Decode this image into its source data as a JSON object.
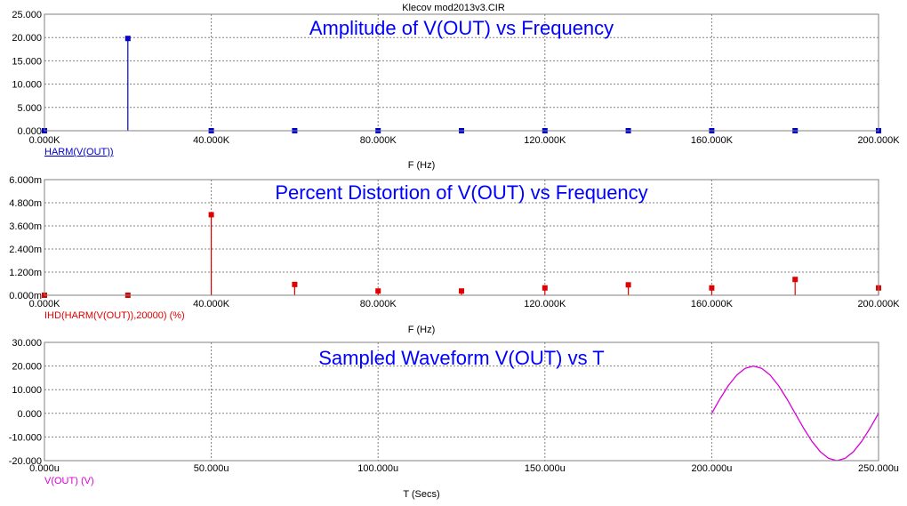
{
  "window": {
    "file_title": "Klecov mod2013v3.CIR"
  },
  "chart_data": [
    {
      "type": "bar",
      "title": "Amplitude of V(OUT) vs Frequency",
      "legend": "HARM(V(OUT))",
      "xlabel": "F (Hz)",
      "ylabel": "",
      "color": "#0000C8",
      "title_color": "#0000FF",
      "xlim": [
        0,
        200000
      ],
      "ylim": [
        0,
        25
      ],
      "xticks": [
        0,
        40000,
        80000,
        120000,
        160000,
        200000
      ],
      "xtick_labels": [
        "0.000K",
        "40.000K",
        "80.000K",
        "120.000K",
        "160.000K",
        "200.000K"
      ],
      "yticks": [
        0,
        5,
        10,
        15,
        20,
        25
      ],
      "ytick_labels": [
        "0.000",
        "5.000",
        "10.000",
        "15.000",
        "20.000",
        "25.000"
      ],
      "grid": true,
      "x": [
        0,
        20000,
        40000,
        60000,
        80000,
        100000,
        120000,
        140000,
        160000,
        180000,
        200000
      ],
      "values": [
        0,
        19.8,
        0,
        0,
        0,
        0,
        0,
        0,
        0,
        0,
        0
      ]
    },
    {
      "type": "bar",
      "title": "Percent Distortion of V(OUT) vs Frequency",
      "legend": "IHD(HARM(V(OUT)),20000) (%)",
      "xlabel": "F (Hz)",
      "ylabel": "",
      "color": "#E00000",
      "title_color": "#0000FF",
      "xlim": [
        0,
        200000
      ],
      "ylim": [
        0,
        6
      ],
      "xticks": [
        0,
        40000,
        80000,
        120000,
        160000,
        200000
      ],
      "xtick_labels": [
        "0.000K",
        "40.000K",
        "80.000K",
        "120.000K",
        "160.000K",
        "200.000K"
      ],
      "yticks": [
        0,
        1.2,
        2.4,
        3.6,
        4.8,
        6.0
      ],
      "ytick_labels": [
        "0.000m",
        "1.200m",
        "2.400m",
        "3.600m",
        "4.800m",
        "6.000m"
      ],
      "grid": true,
      "x": [
        0,
        20000,
        40000,
        60000,
        80000,
        100000,
        120000,
        140000,
        160000,
        180000,
        200000
      ],
      "values": [
        0,
        0,
        4.18,
        0.56,
        0.22,
        0.22,
        0.38,
        0.54,
        0.38,
        0.82,
        0.38
      ]
    },
    {
      "type": "line",
      "title": "Sampled Waveform  V(OUT) vs T",
      "legend": "V(OUT) (V)",
      "xlabel": "T (Secs)",
      "ylabel": "",
      "color": "#D800D8",
      "title_color": "#0000FF",
      "xlim": [
        0,
        250
      ],
      "ylim": [
        -20,
        30
      ],
      "xticks": [
        0,
        50,
        100,
        150,
        200,
        250
      ],
      "xtick_labels": [
        "0.000u",
        "50.000u",
        "100.000u",
        "150.000u",
        "200.000u",
        "250.000u"
      ],
      "yticks": [
        -20,
        -10,
        0,
        10,
        20,
        30
      ],
      "ytick_labels": [
        "-20.000",
        "-10.000",
        "0.000",
        "10.000",
        "20.000",
        "30.000"
      ],
      "grid": true,
      "series": [
        {
          "x": [
            200,
            202.5,
            205,
            207.5,
            210,
            212.5,
            215,
            217.5,
            220,
            222.5,
            225,
            227.5,
            230,
            232.5,
            235,
            237.5,
            240,
            242.5,
            245,
            247.5,
            250
          ],
          "values": [
            0,
            6.18,
            11.76,
            16.18,
            19.02,
            20,
            19.02,
            16.18,
            11.76,
            6.18,
            0,
            -6.18,
            -11.76,
            -16.18,
            -19.02,
            -20,
            -19.02,
            -16.18,
            -11.76,
            -6.18,
            0
          ]
        }
      ]
    }
  ]
}
